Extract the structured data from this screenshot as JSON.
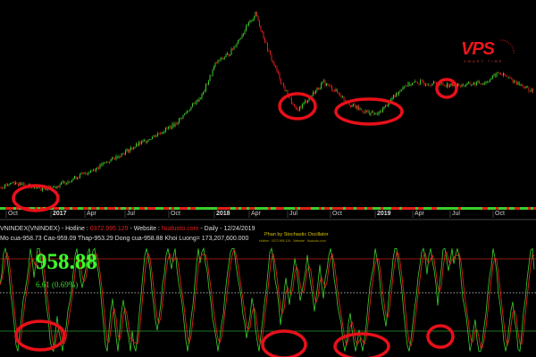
{
  "chart_data": {
    "type": "candlestick",
    "title": "VNINDEX(VNINDEX) - Daily - 12/24/2019",
    "x_tick_labels": [
      "Oct",
      "2017",
      "Apr",
      "Jul",
      "Oct",
      "2018",
      "Apr",
      "Jul",
      "Oct",
      "2019",
      "Apr",
      "Jul",
      "Oct"
    ],
    "price_series": {
      "dates": [
        "2016-09",
        "2016-10",
        "2016-12",
        "2017-01",
        "2017-04",
        "2017-07",
        "2017-10",
        "2017-12",
        "2018-01",
        "2018-02",
        "2018-04",
        "2018-05",
        "2018-06",
        "2018-07",
        "2018-09",
        "2018-10",
        "2018-11",
        "2018-12",
        "2019-01",
        "2019-03",
        "2019-04",
        "2019-07",
        "2019-09",
        "2019-10",
        "2019-12"
      ],
      "values": [
        665,
        680,
        660,
        665,
        720,
        790,
        860,
        950,
        1050,
        1080,
        1204,
        1080,
        980,
        900,
        990,
        960,
        920,
        900,
        890,
        980,
        990,
        980,
        990,
        1020,
        958.88
      ]
    },
    "indicator": {
      "name": "Stochastic Oscillator",
      "upper_level": 80,
      "mid_level": 50,
      "lower_level": 20,
      "range": [
        0,
        100
      ]
    },
    "colors": {
      "up": "#3ccf2a",
      "down": "#e0201c",
      "upper_line": "#c0201c",
      "lower_line": "#2a9a2a",
      "highlight": "#e8101a"
    }
  },
  "header": {
    "symbol": "VNINDEX(VNINDEX) - Hotline : ",
    "hotline": "0372.995.129",
    "website_label": " - Website : ",
    "website": "Nuduoto.com",
    "period": " - Daily  - 12/24/2019",
    "ohlc": "Mo cua-958.73  Cao-959.09  Thap-953.29  Dong cua-958.88  Khoi Luong= 173,207,600.000"
  },
  "last_price": "958.88",
  "change": "6.61 (0.69%)",
  "indicator_title": "Phan by Stochastic Oscillator",
  "indicator_sub": "Hotline : 0372.995.129 - Website : Nuduoto.com",
  "logo": {
    "text": "VPS",
    "tagline": "SMART TIME"
  }
}
